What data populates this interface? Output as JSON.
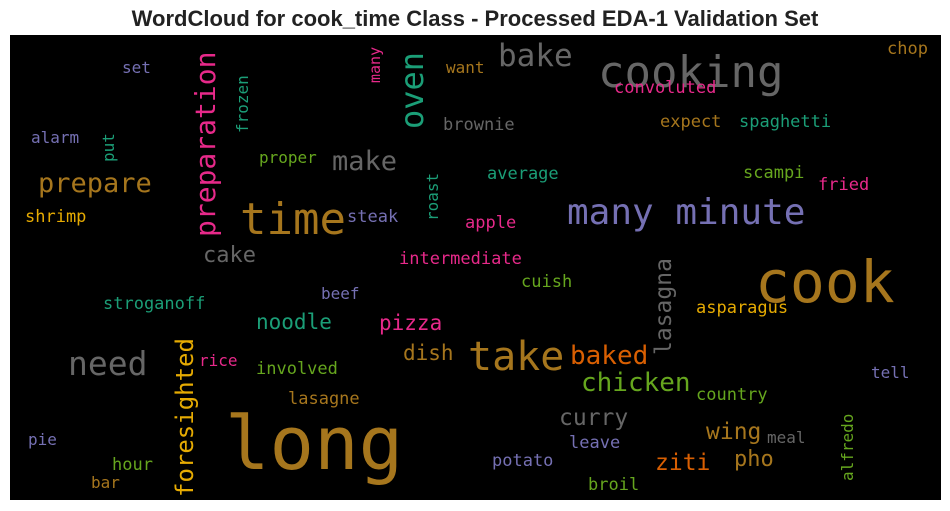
{
  "title": "WordCloud for cook_time Class - Processed EDA-1 Validation Set",
  "words": [
    {
      "id": "long",
      "text": "long",
      "color": "#a6761d"
    },
    {
      "id": "cook",
      "text": "cook",
      "color": "#a6761d"
    },
    {
      "id": "cooking",
      "text": "cooking",
      "color": "#666666"
    },
    {
      "id": "time",
      "text": "time",
      "color": "#a6761d"
    },
    {
      "id": "many-minute",
      "text": "many minute",
      "color": "#7570b3"
    },
    {
      "id": "take",
      "text": "take",
      "color": "#a6761d"
    },
    {
      "id": "need",
      "text": "need",
      "color": "#666666"
    },
    {
      "id": "bake",
      "text": "bake",
      "color": "#666666"
    },
    {
      "id": "oven",
      "text": "oven",
      "color": "#1b9e77"
    },
    {
      "id": "preparation",
      "text": "preparation",
      "color": "#e7298a"
    },
    {
      "id": "prepare",
      "text": "prepare",
      "color": "#a6761d"
    },
    {
      "id": "make",
      "text": "make",
      "color": "#666666"
    },
    {
      "id": "chicken",
      "text": "chicken",
      "color": "#66a61e"
    },
    {
      "id": "baked",
      "text": "baked",
      "color": "#d95f02"
    },
    {
      "id": "foresighted",
      "text": "foresighted",
      "color": "#e6ab02"
    },
    {
      "id": "lasagna",
      "text": "lasagna",
      "color": "#666666"
    },
    {
      "id": "curry",
      "text": "curry",
      "color": "#666666"
    },
    {
      "id": "wing",
      "text": "wing",
      "color": "#a6761d"
    },
    {
      "id": "pho",
      "text": "pho",
      "color": "#a6761d"
    },
    {
      "id": "ziti",
      "text": "ziti",
      "color": "#d95f02"
    },
    {
      "id": "pizza",
      "text": "pizza",
      "color": "#e7298a"
    },
    {
      "id": "dish",
      "text": "dish",
      "color": "#a6761d"
    },
    {
      "id": "noodle",
      "text": "noodle",
      "color": "#1b9e77"
    },
    {
      "id": "cake",
      "text": "cake",
      "color": "#666666"
    },
    {
      "id": "chop",
      "text": "chop",
      "color": "#a6761d"
    },
    {
      "id": "set",
      "text": "set",
      "color": "#7570b3"
    },
    {
      "id": "want",
      "text": "want",
      "color": "#a6761d"
    },
    {
      "id": "many-small",
      "text": "many",
      "color": "#e7298a"
    },
    {
      "id": "frozen",
      "text": "frozen",
      "color": "#1b9e77"
    },
    {
      "id": "convoluted",
      "text": "convoluted",
      "color": "#e7298a"
    },
    {
      "id": "alarm",
      "text": "alarm",
      "color": "#7570b3"
    },
    {
      "id": "put",
      "text": "put",
      "color": "#1b9e77"
    },
    {
      "id": "brownie",
      "text": "brownie",
      "color": "#666666"
    },
    {
      "id": "expect",
      "text": "expect",
      "color": "#a6761d"
    },
    {
      "id": "spaghetti",
      "text": "spaghetti",
      "color": "#1b9e77"
    },
    {
      "id": "proper",
      "text": "proper",
      "color": "#66a61e"
    },
    {
      "id": "roast",
      "text": "roast",
      "color": "#1b9e77"
    },
    {
      "id": "average",
      "text": "average",
      "color": "#1b9e77"
    },
    {
      "id": "scampi",
      "text": "scampi",
      "color": "#66a61e"
    },
    {
      "id": "fried",
      "text": "fried",
      "color": "#e7298a"
    },
    {
      "id": "shrimp",
      "text": "shrimp",
      "color": "#e6ab02"
    },
    {
      "id": "steak",
      "text": "steak",
      "color": "#7570b3"
    },
    {
      "id": "apple",
      "text": "apple",
      "color": "#e7298a"
    },
    {
      "id": "intermediate",
      "text": "intermediate",
      "color": "#e7298a"
    },
    {
      "id": "cuish",
      "text": "cuish",
      "color": "#66a61e"
    },
    {
      "id": "beef",
      "text": "beef",
      "color": "#7570b3"
    },
    {
      "id": "stroganoff",
      "text": "stroganoff",
      "color": "#1b9e77"
    },
    {
      "id": "asparagus",
      "text": "asparagus",
      "color": "#e6ab02"
    },
    {
      "id": "rice",
      "text": "rice",
      "color": "#e7298a"
    },
    {
      "id": "involved",
      "text": "involved",
      "color": "#66a61e"
    },
    {
      "id": "tell",
      "text": "tell",
      "color": "#7570b3"
    },
    {
      "id": "country",
      "text": "country",
      "color": "#66a61e"
    },
    {
      "id": "lasagne",
      "text": "lasagne",
      "color": "#a6761d"
    },
    {
      "id": "alfredo",
      "text": "alfredo",
      "color": "#66a61e"
    },
    {
      "id": "meal",
      "text": "meal",
      "color": "#666666"
    },
    {
      "id": "pie",
      "text": "pie",
      "color": "#7570b3"
    },
    {
      "id": "leave",
      "text": "leave",
      "color": "#7570b3"
    },
    {
      "id": "hour",
      "text": "hour",
      "color": "#66a61e"
    },
    {
      "id": "potato",
      "text": "potato",
      "color": "#7570b3"
    },
    {
      "id": "bar",
      "text": "bar",
      "color": "#a6761d"
    },
    {
      "id": "broil",
      "text": "broil",
      "color": "#66a61e"
    }
  ]
}
